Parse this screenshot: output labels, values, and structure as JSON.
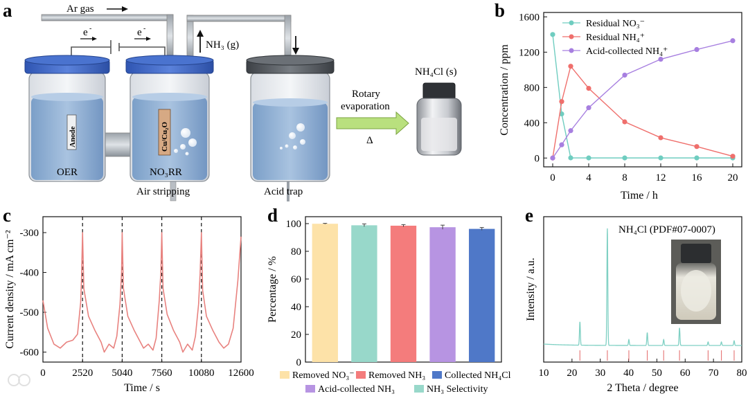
{
  "panel_labels": [
    "a",
    "b",
    "c",
    "d",
    "e"
  ],
  "schematic": {
    "ar_gas": "Ar  gas",
    "electron": "e",
    "electron_sup": "-",
    "nh3_gas": "NH₃ (g)",
    "anode": "Anode",
    "cathode": "Cu/Cu₂O",
    "oer": "OER",
    "no3rr": "NO₃RR",
    "air_stripping": "Air stripping",
    "acid_trap": "Acid trap",
    "rotary_line1": "Rotary",
    "rotary_line2": "evaporation",
    "heat": "Δ",
    "product": "NH₄Cl (s)",
    "colors": {
      "cap": "#3a63c6",
      "cap_dark": "#555a60",
      "liquid": "#8fb0d4",
      "arrow": "#b9e07e",
      "wire": "#666666"
    }
  },
  "chart_data": [
    {
      "id": "b",
      "type": "line",
      "xlabel": "Time / h",
      "ylabel": "Concentration / ppm",
      "xlim": [
        -1,
        21
      ],
      "ylim": [
        -100,
        1650
      ],
      "xticks": [
        0,
        4,
        8,
        12,
        16,
        20
      ],
      "yticks": [
        0,
        400,
        800,
        1200,
        1600
      ],
      "series": [
        {
          "name": "Residual NO₃⁻",
          "color": "#6fcdc0",
          "x": [
            0,
            1,
            2,
            4,
            8,
            12,
            16,
            20
          ],
          "values": [
            1400,
            500,
            2,
            1,
            1,
            1,
            1,
            1
          ]
        },
        {
          "name": "Residual NH₄⁺",
          "color": "#ef6f6c",
          "x": [
            0,
            1,
            2,
            4,
            8,
            12,
            16,
            20
          ],
          "values": [
            0,
            640,
            1040,
            790,
            410,
            230,
            130,
            20
          ]
        },
        {
          "name": "Acid-collected NH₄⁺",
          "color": "#a77fe0",
          "x": [
            0,
            1,
            2,
            4,
            8,
            12,
            16,
            20
          ],
          "values": [
            0,
            150,
            310,
            570,
            940,
            1120,
            1230,
            1330
          ]
        }
      ]
    },
    {
      "id": "c",
      "type": "line",
      "xlabel": "Time / s",
      "ylabel": "Current density / mA cm⁻²",
      "xlim": [
        0,
        12600
      ],
      "ylim": [
        -625,
        -260
      ],
      "xticks": [
        0,
        2520,
        5040,
        7560,
        10080,
        12600
      ],
      "yticks": [
        -300,
        -400,
        -500,
        -600
      ],
      "cycle_markers": [
        2520,
        5040,
        7560,
        10080
      ],
      "series": [
        {
          "name": "Current density",
          "color": "#e8827f",
          "x": [
            0,
            300,
            700,
            1100,
            1500,
            1900,
            2200,
            2400,
            2450,
            2520,
            2600,
            2900,
            3300,
            3700,
            3900,
            4200,
            4500,
            4700,
            4900,
            5000,
            5040,
            5120,
            5400,
            5800,
            6200,
            6400,
            6700,
            7000,
            7200,
            7400,
            7500,
            7560,
            7640,
            7900,
            8300,
            8700,
            8900,
            9200,
            9500,
            9700,
            9900,
            10000,
            10080,
            10160,
            10400,
            10800,
            11200,
            11500,
            11800,
            12100,
            12400,
            12600
          ],
          "values": [
            -470,
            -540,
            -580,
            -590,
            -575,
            -570,
            -555,
            -475,
            -420,
            -300,
            -440,
            -510,
            -545,
            -575,
            -600,
            -580,
            -590,
            -560,
            -480,
            -400,
            -300,
            -440,
            -510,
            -545,
            -575,
            -590,
            -580,
            -595,
            -565,
            -470,
            -400,
            -300,
            -440,
            -505,
            -545,
            -575,
            -600,
            -580,
            -595,
            -560,
            -480,
            -400,
            -300,
            -445,
            -510,
            -545,
            -575,
            -590,
            -580,
            -540,
            -420,
            -310
          ]
        }
      ]
    },
    {
      "id": "d",
      "type": "bar",
      "ylabel": "Percentage / %",
      "ylim": [
        0,
        105
      ],
      "yticks": [
        0,
        20,
        40,
        60,
        80,
        100
      ],
      "categories": [
        "Removed NO₃⁻",
        "Removed NH₃",
        "Collected NH₄Cl",
        "Acid-collected NH₃",
        "NH₃ Selectivity"
      ],
      "bar_order": [
        0,
        4,
        1,
        3,
        2
      ],
      "values": [
        99.9,
        98.8,
        98.5,
        97.4,
        96.2
      ],
      "errors": [
        0.3,
        1.0,
        0.8,
        1.5,
        1.0
      ],
      "colors": [
        "#fde2a8",
        "#98d8ca",
        "#f47c7c",
        "#b794e2",
        "#4f78c8"
      ]
    },
    {
      "id": "e",
      "type": "line",
      "title": "NH₄Cl (PDF#07-0007)",
      "xlabel": "2 Theta / degree",
      "ylabel": "Intensity / a.u.",
      "xlim": [
        10,
        80
      ],
      "xticks": [
        10,
        20,
        30,
        40,
        50,
        60,
        70,
        80
      ],
      "peaks": [
        {
          "pos": 22.8,
          "height": 0.2
        },
        {
          "pos": 32.5,
          "height": 1.0
        },
        {
          "pos": 40.1,
          "height": 0.05
        },
        {
          "pos": 46.6,
          "height": 0.11
        },
        {
          "pos": 52.4,
          "height": 0.05
        },
        {
          "pos": 58.0,
          "height": 0.15
        },
        {
          "pos": 68.1,
          "height": 0.03
        },
        {
          "pos": 72.8,
          "height": 0.03
        },
        {
          "pos": 77.3,
          "height": 0.04
        }
      ],
      "reference_lines": [
        22.8,
        32.5,
        40.1,
        46.6,
        52.4,
        58.0,
        68.1,
        72.8,
        77.3
      ],
      "colors": {
        "pattern": "#7fd0c3",
        "reference": "#e57373"
      }
    }
  ]
}
